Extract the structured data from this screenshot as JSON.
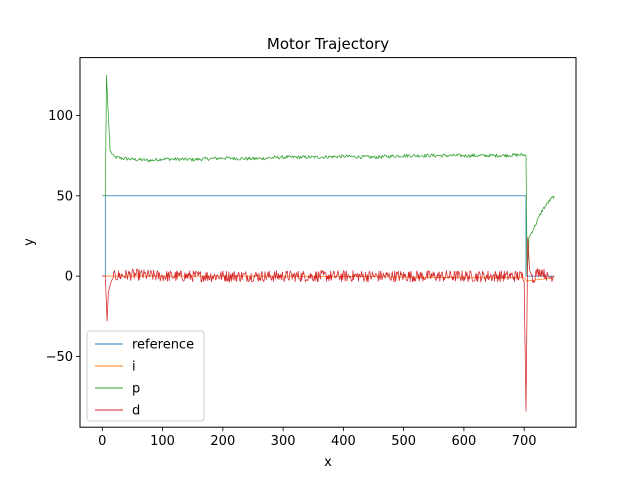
{
  "chart_data": {
    "type": "line",
    "title": "Motor Trajectory",
    "xlabel": "x",
    "ylabel": "y",
    "xlim": [
      -37,
      786
    ],
    "ylim": [
      -94,
      136
    ],
    "xticks": [
      0,
      100,
      200,
      300,
      400,
      500,
      600,
      700
    ],
    "yticks": [
      -50,
      0,
      50,
      100
    ],
    "ytick_labels": [
      "−50",
      "0",
      "50",
      "100"
    ],
    "grid": false,
    "legend_position": "lower-left",
    "series": [
      {
        "name": "reference",
        "color": "#1f77b4",
        "points": [
          [
            0,
            0
          ],
          [
            5,
            0
          ],
          [
            5,
            50
          ],
          [
            703,
            50
          ],
          [
            703,
            0
          ],
          [
            750,
            0
          ]
        ]
      },
      {
        "name": "i",
        "color": "#ff7f0e",
        "points": [
          [
            0,
            0
          ],
          [
            100,
            0
          ],
          [
            300,
            0
          ],
          [
            500,
            -0.5
          ],
          [
            600,
            -1
          ],
          [
            700,
            -1
          ],
          [
            704,
            -3
          ],
          [
            750,
            -1
          ]
        ]
      },
      {
        "name": "p",
        "color": "#2ca02c",
        "points": [
          [
            0,
            50
          ],
          [
            5,
            50
          ],
          [
            7,
            125
          ],
          [
            10,
            100
          ],
          [
            13,
            78
          ],
          [
            20,
            74
          ],
          [
            40,
            73
          ],
          [
            80,
            72
          ],
          [
            100,
            73
          ],
          [
            150,
            72.5
          ],
          [
            200,
            73.5
          ],
          [
            250,
            73
          ],
          [
            300,
            74
          ],
          [
            350,
            74
          ],
          [
            400,
            74.5
          ],
          [
            450,
            74
          ],
          [
            500,
            75
          ],
          [
            550,
            75
          ],
          [
            600,
            75
          ],
          [
            650,
            75
          ],
          [
            700,
            75.5
          ],
          [
            703,
            75
          ],
          [
            705,
            0
          ],
          [
            708,
            24
          ],
          [
            712,
            27
          ],
          [
            720,
            33
          ],
          [
            730,
            41
          ],
          [
            740,
            46
          ],
          [
            750,
            50
          ]
        ]
      },
      {
        "name": "d",
        "color": "#d62728",
        "points": [
          [
            0,
            0
          ],
          [
            5,
            0
          ],
          [
            8,
            -28
          ],
          [
            10,
            -10
          ],
          [
            15,
            -3
          ],
          [
            20,
            0
          ],
          [
            50,
            1
          ],
          [
            100,
            0
          ],
          [
            200,
            0
          ],
          [
            300,
            0
          ],
          [
            400,
            0
          ],
          [
            500,
            0
          ],
          [
            600,
            0
          ],
          [
            700,
            0
          ],
          [
            703,
            -84
          ],
          [
            706,
            24
          ],
          [
            709,
            4
          ],
          [
            715,
            -3
          ],
          [
            720,
            2
          ],
          [
            730,
            3
          ],
          [
            740,
            -1
          ],
          [
            750,
            0
          ]
        ]
      }
    ]
  }
}
